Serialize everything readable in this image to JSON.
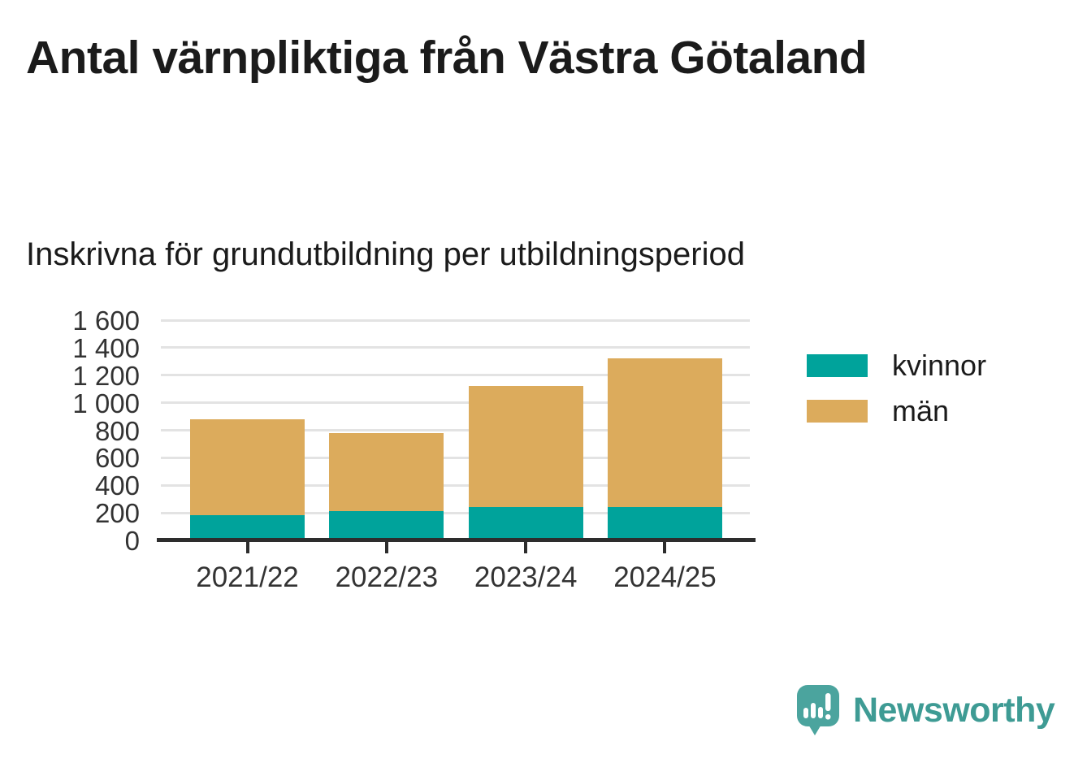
{
  "page": {
    "title": "Antal värnpliktiga från Västra Götaland",
    "subtitle": "Inskrivna för grundutbildning per utbildningsperiod"
  },
  "colors": {
    "kvinnor": "#00A39B",
    "man": "#DCAB5C",
    "axis": "#2d2d2d",
    "gridline": "#e3e3e3",
    "tick_text": "#333333",
    "title_text": "#1b1b1b",
    "brand": "#3e9b94",
    "logo_bubble": "#4BA49E"
  },
  "chart_data": {
    "type": "bar",
    "stacked": true,
    "title": "Antal värnpliktiga från Västra Götaland",
    "subtitle": "Inskrivna för grundutbildning per utbildningsperiod",
    "categories": [
      "2021/22",
      "2022/23",
      "2023/24",
      "2024/25"
    ],
    "series": [
      {
        "name": "kvinnor",
        "color": "#00A39B",
        "values": [
          185,
          210,
          240,
          240
        ]
      },
      {
        "name": "män",
        "color": "#DCAB5C",
        "values": [
          695,
          570,
          880,
          1080
        ]
      }
    ],
    "totals": [
      880,
      780,
      1120,
      1320
    ],
    "xlabel": "",
    "ylabel": "",
    "ylim": [
      0,
      1600
    ],
    "ytick_values": [
      0,
      200,
      400,
      600,
      800,
      1000,
      1200,
      1400,
      1600
    ],
    "ytick_labels": [
      "0",
      "200",
      "400",
      "600",
      "800",
      "1 000",
      "1 200",
      "1 400",
      "1 600"
    ],
    "grid": "horizontal",
    "legend_position": "right"
  },
  "footer": {
    "brand_name": "Newsworthy"
  }
}
